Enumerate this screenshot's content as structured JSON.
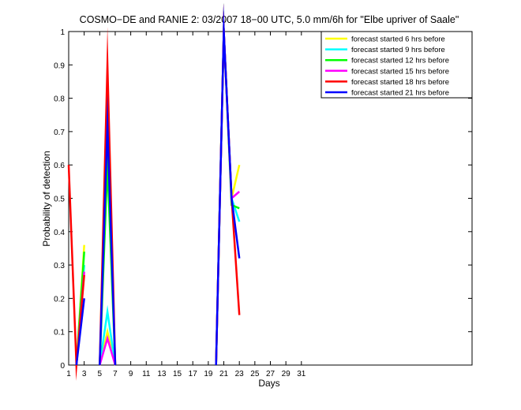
{
  "chart_data": {
    "type": "line",
    "title": "COSMO−DE and RANIE 2: 03/2007 18−00 UTC, 5.0 mm/6h for \"Elbe upriver of Saale\"",
    "xlabel": "Days",
    "ylabel": "Probability of detection",
    "xlim": [
      1,
      53
    ],
    "ylim": [
      0,
      1
    ],
    "grid": false,
    "legend_position": "top-right",
    "xticks": [
      1,
      3,
      5,
      7,
      9,
      11,
      13,
      15,
      17,
      19,
      21,
      23,
      25,
      27,
      29,
      31
    ],
    "yticks": [
      0,
      0.1,
      0.2,
      0.3,
      0.4,
      0.5,
      0.6,
      0.7,
      0.8,
      0.9,
      1
    ],
    "ytick_labels": [
      "0",
      "0.1",
      "0.2",
      "0.3",
      "0.4",
      "0.5",
      "0.6",
      "0.7",
      "0.8",
      "0.9",
      "1"
    ],
    "series": [
      {
        "name": "forecast started 6 hrs before",
        "color": "#ffff00",
        "segments": [
          [
            [
              2,
              0
            ],
            [
              3,
              0.36
            ]
          ],
          [
            [
              5,
              0
            ],
            [
              6,
              0.1
            ],
            [
              7,
              0
            ]
          ],
          [
            [
              20,
              0
            ],
            [
              21,
              1
            ],
            [
              22,
              0.5
            ],
            [
              23,
              0.6
            ]
          ]
        ]
      },
      {
        "name": "forecast started 9 hrs before",
        "color": "#00ffff",
        "segments": [
          [
            [
              2,
              0
            ],
            [
              3,
              0.3
            ]
          ],
          [
            [
              5,
              0
            ],
            [
              6,
              0.16
            ],
            [
              7,
              0
            ]
          ],
          [
            [
              20,
              0
            ],
            [
              21,
              1
            ],
            [
              22,
              0.5
            ],
            [
              23,
              0.43
            ]
          ]
        ]
      },
      {
        "name": "forecast started 12 hrs before",
        "color": "#00ff00",
        "segments": [
          [
            [
              2,
              0
            ],
            [
              3,
              0.34
            ]
          ],
          [
            [
              5,
              0
            ],
            [
              6,
              0.6
            ],
            [
              7,
              0
            ]
          ],
          [
            [
              20,
              0
            ],
            [
              21,
              1
            ],
            [
              22,
              0.48
            ],
            [
              23,
              0.47
            ]
          ]
        ]
      },
      {
        "name": "forecast started 15 hrs before",
        "color": "#ff00ff",
        "segments": [
          [
            [
              2,
              0
            ],
            [
              3,
              0.28
            ]
          ],
          [
            [
              5,
              0
            ],
            [
              6,
              0.08
            ],
            [
              7,
              0
            ]
          ],
          [
            [
              20,
              0
            ],
            [
              21,
              1
            ],
            [
              22,
              0.5
            ],
            [
              23,
              0.52
            ]
          ]
        ]
      },
      {
        "name": "forecast started 18 hrs before",
        "color": "#ff0000",
        "segments": [
          [
            [
              1,
              0.6
            ],
            [
              2,
              0
            ],
            [
              3,
              0.27
            ]
          ],
          [
            [
              5,
              0
            ],
            [
              6,
              0.9
            ],
            [
              7,
              0
            ]
          ],
          [
            [
              20,
              0
            ],
            [
              21,
              1
            ],
            [
              22,
              0.5
            ],
            [
              23,
              0.15
            ]
          ]
        ]
      },
      {
        "name": "forecast started 21 hrs before",
        "color": "#0000ff",
        "segments": [
          [
            [
              2,
              0
            ],
            [
              3,
              0.2
            ]
          ],
          [
            [
              5,
              0
            ],
            [
              6,
              0.72
            ],
            [
              7,
              0
            ]
          ],
          [
            [
              20,
              0
            ],
            [
              21,
              1
            ],
            [
              22,
              0.5
            ],
            [
              23,
              0.32
            ]
          ]
        ]
      }
    ]
  }
}
